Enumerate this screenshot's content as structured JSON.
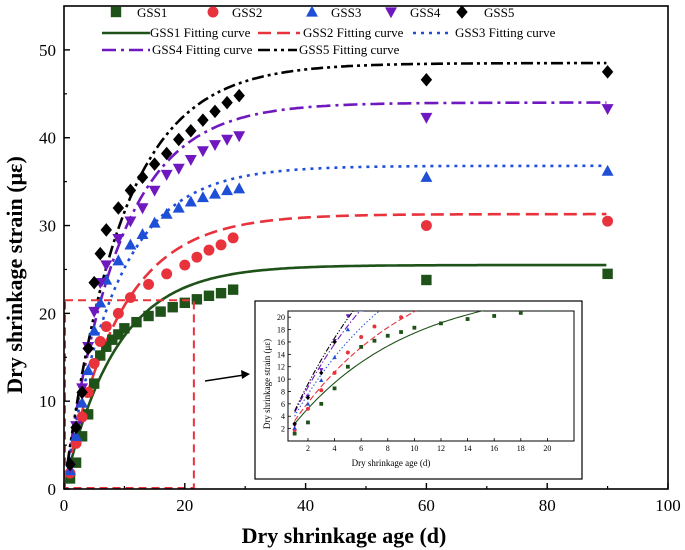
{
  "chart_data": {
    "type": "scatter",
    "xlabel": "Dry shrinkage age (d)",
    "ylabel": "Dry shrinkage strain (με)",
    "xlim": [
      0,
      100
    ],
    "ylim": [
      0,
      55
    ],
    "xticks": [
      0,
      20,
      40,
      60,
      80,
      100
    ],
    "yticks": [
      0,
      10,
      20,
      30,
      40,
      50
    ],
    "colors": {
      "GSS1": "#1e5218",
      "GSS2": "#e8323c",
      "GSS3": "#1f4fd6",
      "GSS4": "#6f18c0",
      "GSS5": "#000000"
    },
    "series": [
      {
        "name": "GSS1",
        "marker": "square",
        "fit_label": "GSS1 Fitting curve",
        "fit_dash": "solid",
        "x": [
          1,
          2,
          3,
          4,
          5,
          6,
          7,
          8,
          9,
          10,
          12,
          14,
          16,
          18,
          20,
          22,
          24,
          26,
          28,
          60,
          90
        ],
        "y": [
          1.2,
          3.0,
          6.0,
          8.5,
          12.0,
          15.2,
          16.2,
          17.0,
          17.6,
          18.3,
          19.0,
          19.7,
          20.2,
          20.7,
          21.2,
          21.6,
          22.0,
          22.3,
          22.7,
          23.8,
          24.5
        ],
        "fit": {
          "ymax": 25.5,
          "k": 0.115
        }
      },
      {
        "name": "GSS2",
        "marker": "circle",
        "fit_label": "GSS2 Fitting curve",
        "fit_dash": "dash",
        "x": [
          1,
          2,
          3,
          4,
          5,
          6,
          7,
          9,
          11,
          14,
          17,
          20,
          22,
          24,
          26,
          28,
          60,
          90
        ],
        "y": [
          1.8,
          5.2,
          8.2,
          11.0,
          14.3,
          16.8,
          18.5,
          20.0,
          21.8,
          23.3,
          24.5,
          25.5,
          26.4,
          27.2,
          27.8,
          28.6,
          30.0,
          30.5
        ],
        "fit": {
          "ymax": 31.3,
          "k": 0.11
        }
      },
      {
        "name": "GSS3",
        "marker": "triangle",
        "fit_label": "GSS3 Fitting curve",
        "fit_dash": "dot",
        "x": [
          1,
          2,
          3,
          4,
          5,
          6,
          7,
          9,
          11,
          13,
          15,
          17,
          19,
          21,
          23,
          25,
          27,
          29,
          60,
          90
        ],
        "y": [
          2.1,
          6.0,
          9.8,
          13.5,
          18.0,
          21.2,
          23.8,
          26.0,
          27.8,
          29.0,
          30.3,
          31.3,
          32.0,
          32.7,
          33.2,
          33.6,
          34.0,
          34.2,
          35.5,
          36.2
        ],
        "fit": {
          "ymax": 36.8,
          "k": 0.115
        }
      },
      {
        "name": "GSS4",
        "marker": "triangle-down",
        "fit_label": "GSS4 Fitting curve",
        "fit_dash": "dashdot",
        "x": [
          1,
          2,
          3,
          4,
          5,
          6,
          7,
          9,
          11,
          13,
          15,
          17,
          19,
          21,
          23,
          25,
          27,
          29,
          60,
          90
        ],
        "y": [
          2.5,
          7.2,
          11.5,
          16.2,
          20.2,
          23.5,
          25.5,
          28.5,
          30.5,
          32.0,
          34.0,
          35.8,
          36.5,
          37.5,
          38.5,
          39.2,
          39.8,
          40.2,
          42.3,
          43.3
        ],
        "fit": {
          "ymax": 44.0,
          "k": 0.11
        }
      },
      {
        "name": "GSS5",
        "marker": "diamond",
        "fit_label": "GSS5 Fitting curve",
        "fit_dash": "dashdotdot",
        "x": [
          1,
          2,
          3,
          4,
          5,
          6,
          7,
          9,
          11,
          13,
          15,
          17,
          19,
          21,
          23,
          25,
          27,
          29,
          60,
          90
        ],
        "y": [
          2.8,
          7.0,
          11.0,
          16.0,
          23.5,
          26.8,
          29.5,
          32.0,
          34.0,
          35.5,
          37.0,
          38.2,
          39.8,
          40.8,
          42.0,
          43.0,
          44.0,
          44.8,
          46.6,
          47.5
        ],
        "fit": {
          "ymax": 48.5,
          "k": 0.105
        }
      }
    ],
    "inset": {
      "xlabel": "Dry shrinkage age (d)",
      "ylabel": "Dry shrinkage strain (με)",
      "xlim": [
        0.5,
        22
      ],
      "ylim": [
        0,
        21
      ],
      "xticks": [
        2,
        4,
        6,
        8,
        10,
        12,
        14,
        16,
        18,
        20
      ],
      "yticks": [
        2,
        4,
        6,
        8,
        10,
        12,
        14,
        16,
        18,
        20
      ],
      "zoom_region": {
        "xlim": [
          0,
          21.5
        ],
        "ylim": [
          0,
          21.5
        ]
      }
    }
  }
}
